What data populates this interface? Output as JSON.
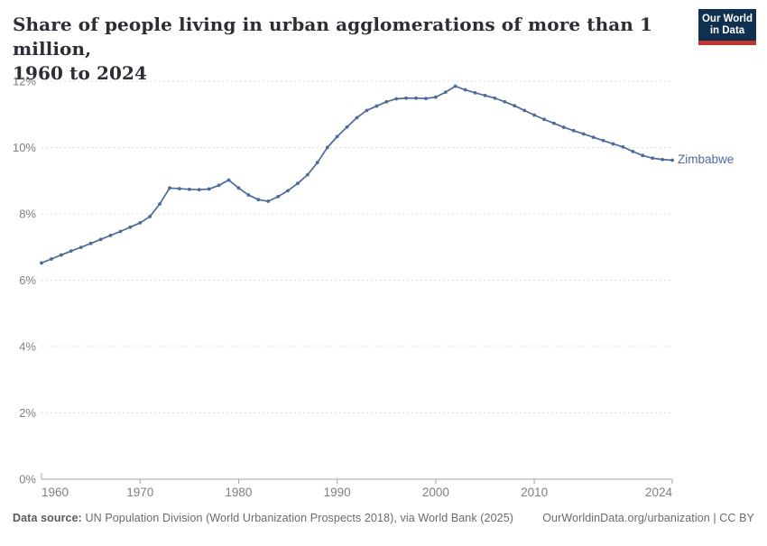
{
  "header": {
    "title_line1": "Share of people living in urban agglomerations of more than 1 million,",
    "title_line2": "1960 to 2024",
    "logo": {
      "line1": "Our World",
      "line2": "in Data"
    }
  },
  "chart_data": {
    "type": "line",
    "title": "Share of people living in urban agglomerations of more than 1 million, 1960 to 2024",
    "xlabel": "",
    "ylabel": "",
    "xlim": [
      1960,
      2024
    ],
    "ylim": [
      0,
      12
    ],
    "grid": true,
    "legend_position": "end-of-line",
    "x_ticks": [
      1960,
      1970,
      1980,
      1990,
      2000,
      2010,
      2024
    ],
    "y_ticks": [
      0,
      2,
      4,
      6,
      8,
      10,
      12
    ],
    "y_tick_suffix": "%",
    "series": [
      {
        "name": "Zimbabwe",
        "color": "#4c6a9c",
        "x": [
          1960,
          1961,
          1962,
          1963,
          1964,
          1965,
          1966,
          1967,
          1968,
          1969,
          1970,
          1971,
          1972,
          1973,
          1974,
          1975,
          1976,
          1977,
          1978,
          1979,
          1980,
          1981,
          1982,
          1983,
          1984,
          1985,
          1986,
          1987,
          1988,
          1989,
          1990,
          1991,
          1992,
          1993,
          1994,
          1995,
          1996,
          1997,
          1998,
          1999,
          2000,
          2001,
          2002,
          2003,
          2004,
          2005,
          2006,
          2007,
          2008,
          2009,
          2010,
          2011,
          2012,
          2013,
          2014,
          2015,
          2016,
          2017,
          2018,
          2019,
          2020,
          2021,
          2022,
          2023,
          2024
        ],
        "values": [
          6.52,
          6.64,
          6.76,
          6.88,
          6.99,
          7.11,
          7.23,
          7.35,
          7.47,
          7.6,
          7.73,
          7.92,
          8.3,
          8.78,
          8.76,
          8.74,
          8.73,
          8.75,
          8.86,
          9.02,
          8.78,
          8.57,
          8.43,
          8.38,
          8.52,
          8.7,
          8.92,
          9.18,
          9.55,
          10.0,
          10.33,
          10.62,
          10.9,
          11.12,
          11.25,
          11.38,
          11.47,
          11.49,
          11.49,
          11.48,
          11.52,
          11.67,
          11.85,
          11.74,
          11.65,
          11.57,
          11.49,
          11.38,
          11.26,
          11.12,
          10.98,
          10.85,
          10.73,
          10.61,
          10.51,
          10.41,
          10.31,
          10.21,
          10.11,
          10.02,
          9.88,
          9.76,
          9.68,
          9.64,
          9.62
        ]
      }
    ]
  },
  "footer": {
    "source_label": "Data source:",
    "source_text": " UN Population Division (World Urbanization Prospects 2018), via World Bank (2025)",
    "link_text": "OurWorldinData.org/urbanization | CC BY"
  },
  "colors": {
    "line": "#4c6a9c",
    "series_label": "#4c6a9c",
    "grid": "#dcdcdc",
    "axis": "#a3a3a3",
    "tick_label": "#7f7f7f",
    "logo_bg": "#10304f",
    "logo_accent": "#bf3730"
  }
}
